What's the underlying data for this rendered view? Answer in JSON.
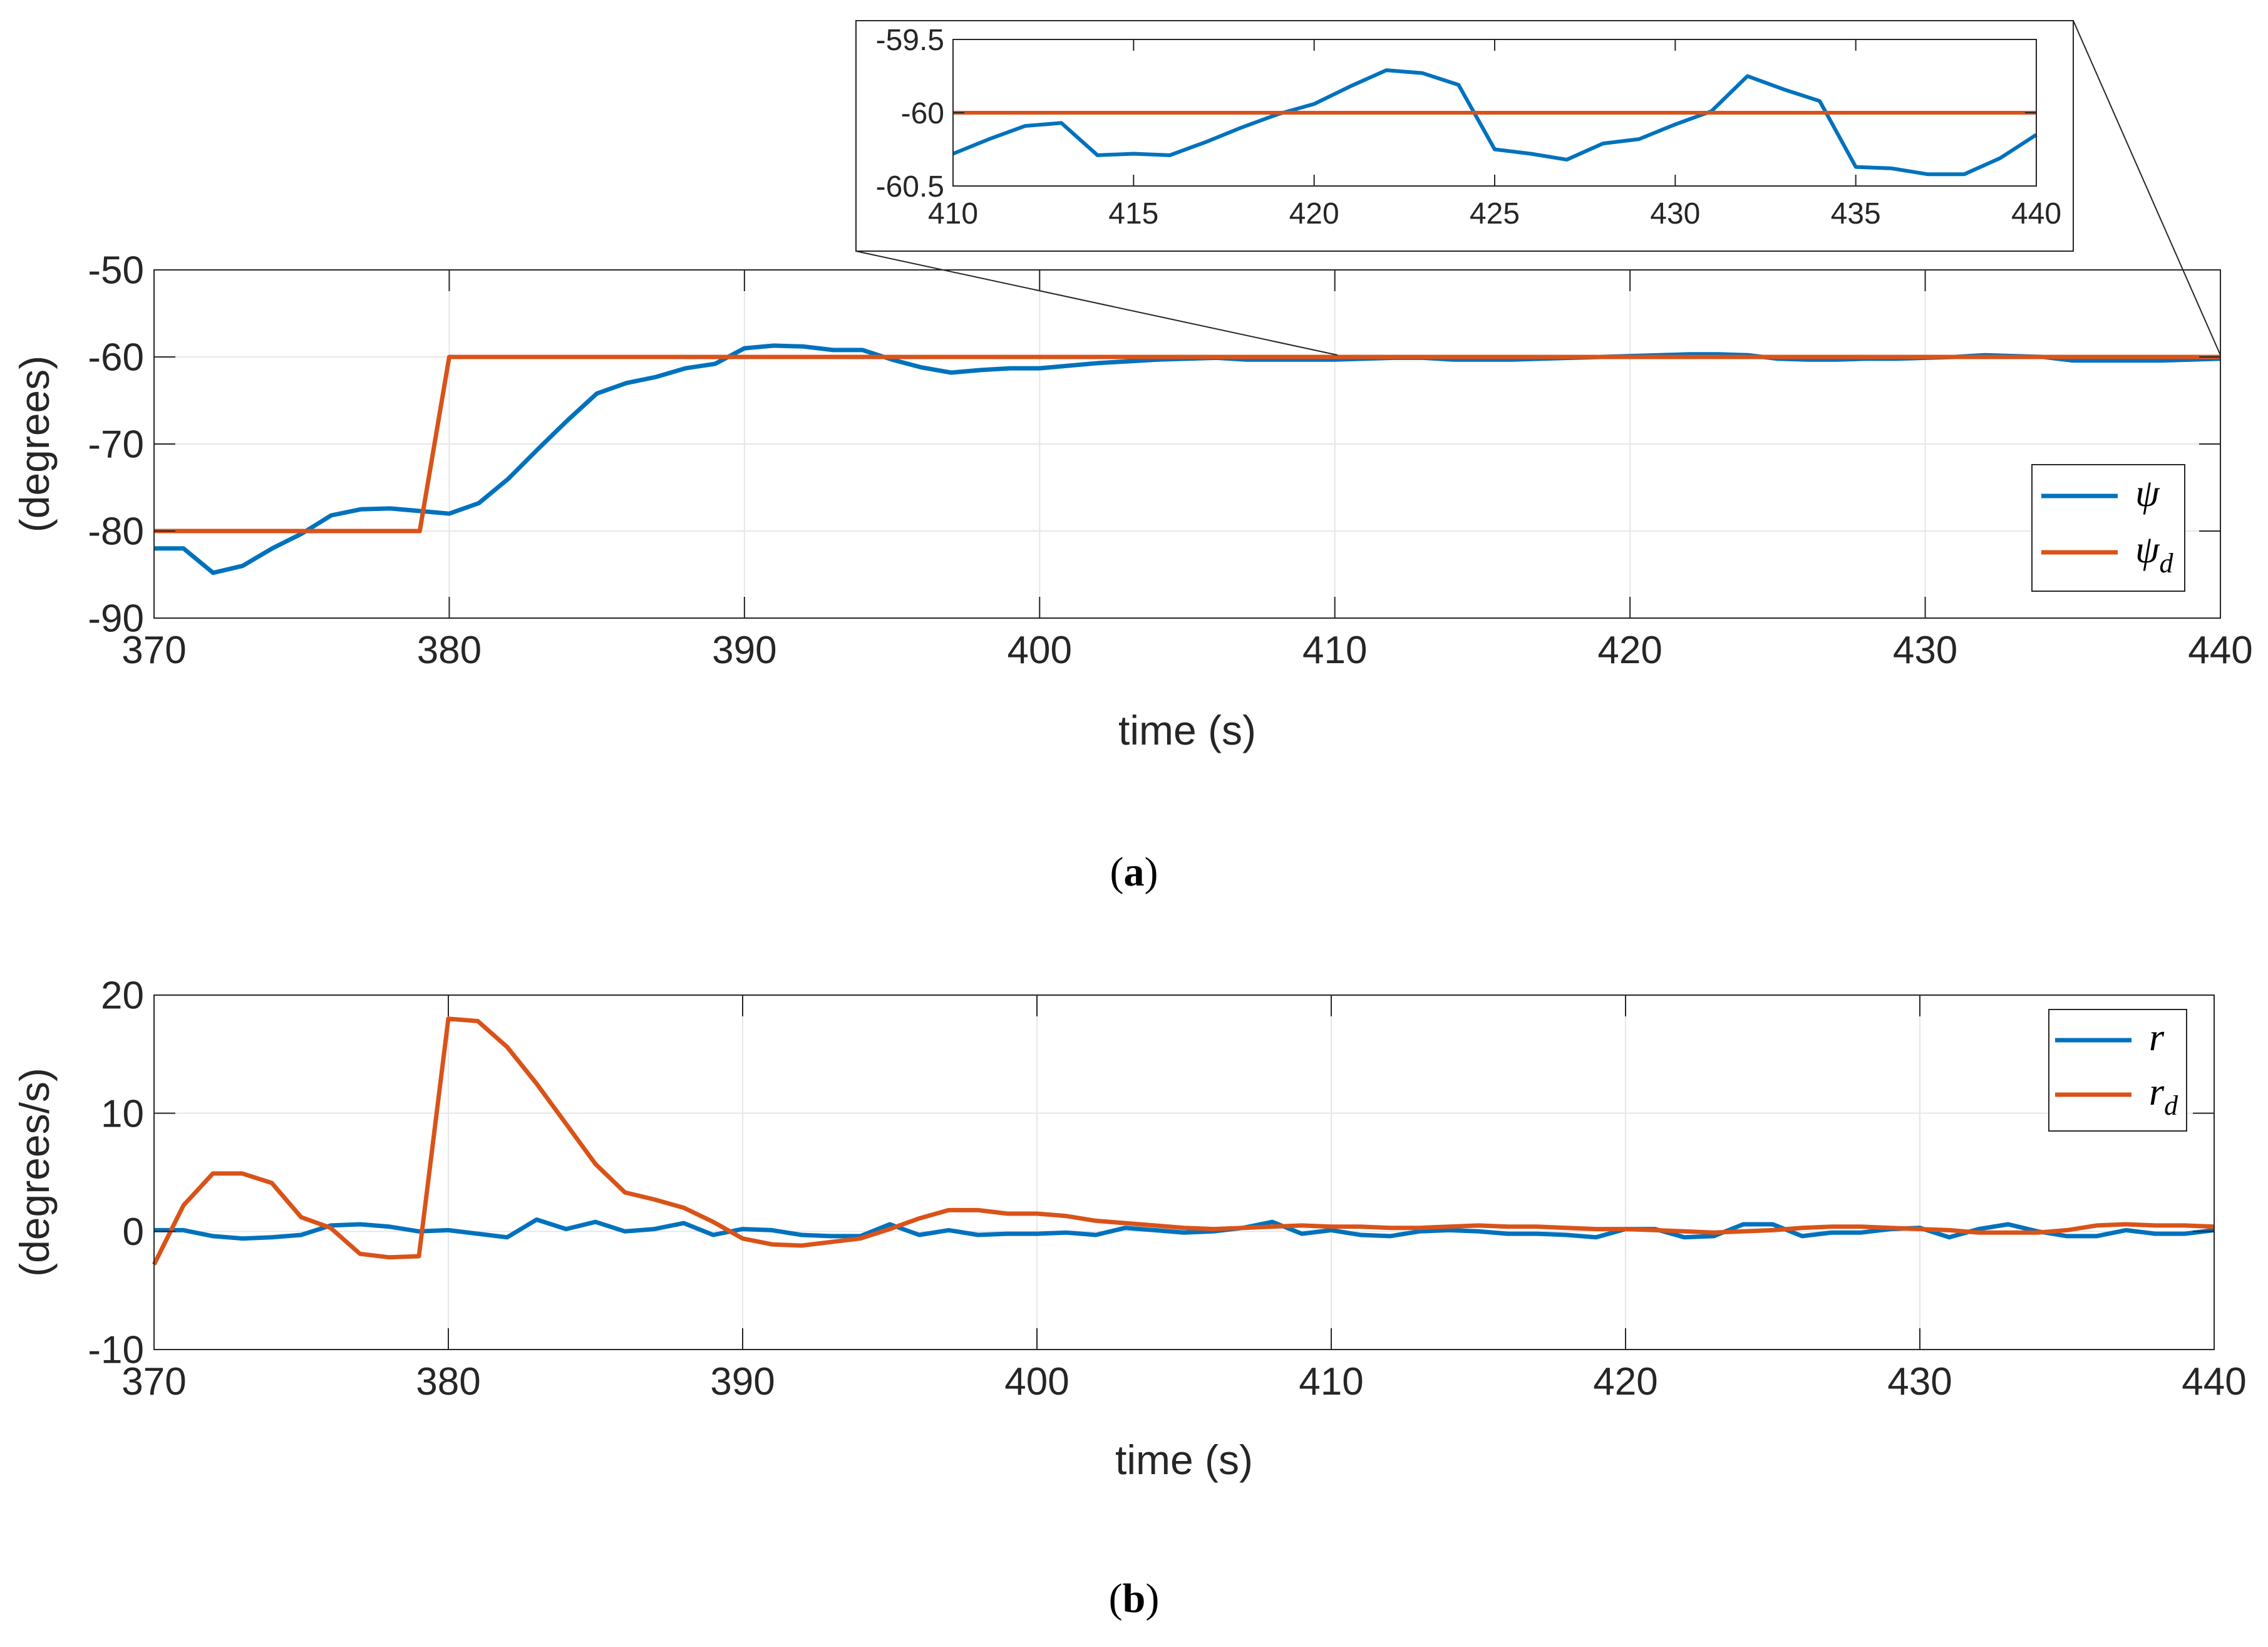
{
  "colors": {
    "psi": "#0072BD",
    "psi_d": "#D95319",
    "grid": "#e6e6e6",
    "axis": "#262626"
  },
  "chart_data": [
    {
      "id": "a",
      "type": "line",
      "caption": "(a)",
      "caption_letter": "a",
      "xlabel": "time (s)",
      "ylabel": "(degrees)",
      "xlim": [
        370,
        440
      ],
      "ylim": [
        -90,
        -50
      ],
      "xticks": [
        370,
        380,
        390,
        400,
        410,
        420,
        430,
        440
      ],
      "yticks": [
        -90,
        -80,
        -70,
        -60,
        -50
      ],
      "ytick_labels": [
        "-90",
        "-80",
        "-70",
        "-60",
        "-50"
      ],
      "legend_position": "right",
      "series": [
        {
          "name": "ψ",
          "base": "ψ",
          "sub": "",
          "color": "#0072BD",
          "x": [
            370,
            371,
            372,
            373,
            374,
            375,
            376,
            377,
            378,
            379,
            380,
            381,
            382,
            383,
            384,
            385,
            386,
            387,
            388,
            389,
            390,
            391,
            392,
            393,
            394,
            395,
            396,
            397,
            398,
            399,
            400,
            401,
            402,
            403,
            404,
            405,
            406,
            407,
            408,
            409,
            410,
            411,
            412,
            413,
            414,
            415,
            416,
            417,
            418,
            419,
            420,
            421,
            422,
            423,
            424,
            425,
            426,
            427,
            428,
            429,
            430,
            431,
            432,
            433,
            434,
            435,
            436,
            437,
            438,
            439,
            440
          ],
          "y": [
            -82,
            -82,
            -84.8,
            -84,
            -82,
            -80.3,
            -78.2,
            -77.5,
            -77.4,
            -77.7,
            -78,
            -76.8,
            -74,
            -70.6,
            -67.3,
            -64.2,
            -63,
            -62.3,
            -61.3,
            -60.8,
            -59,
            -58.7,
            -58.8,
            -59.2,
            -59.2,
            -60.3,
            -61.2,
            -61.8,
            -61.5,
            -61.3,
            -61.3,
            -61,
            -60.7,
            -60.5,
            -60.3,
            -60.2,
            -60.1,
            -60.3,
            -60.3,
            -60.3,
            -60.3,
            -60.2,
            -60.1,
            -60.1,
            -60.3,
            -60.3,
            -60.3,
            -60.2,
            -60.1,
            -60,
            -59.9,
            -59.8,
            -59.7,
            -59.7,
            -59.8,
            -60.2,
            -60.3,
            -60.3,
            -60.2,
            -60.2,
            -60.1,
            -60,
            -59.8,
            -59.9,
            -60,
            -60.4,
            -60.4,
            -60.4,
            -60.4,
            -60.3,
            -60.2
          ]
        },
        {
          "name": "ψd",
          "base": "ψ",
          "sub": "d",
          "color": "#D95319",
          "x": [
            370,
            379,
            380,
            440
          ],
          "y": [
            -80,
            -80,
            -60,
            -60
          ]
        }
      ]
    },
    {
      "id": "a-inset",
      "type": "line",
      "xlim": [
        410,
        440
      ],
      "ylim": [
        -60.5,
        -59.5
      ],
      "xticks": [
        410,
        415,
        420,
        425,
        430,
        435,
        440
      ],
      "yticks": [
        -60.5,
        -60,
        -59.5
      ],
      "ytick_labels": [
        "-60.5",
        "-60",
        "-59.5"
      ],
      "series": [
        {
          "name": "ψ",
          "color": "#0072BD",
          "x": [
            410,
            411,
            412,
            413,
            414,
            415,
            416,
            417,
            418,
            419,
            420,
            421,
            422,
            423,
            424,
            425,
            426,
            427,
            428,
            429,
            430,
            431,
            432,
            433,
            434,
            435,
            436,
            437,
            438,
            439,
            440
          ],
          "y": [
            -60.28,
            -60.18,
            -60.09,
            -60.07,
            -60.29,
            -60.28,
            -60.29,
            -60.2,
            -60.1,
            -60.01,
            -59.94,
            -59.82,
            -59.71,
            -59.73,
            -59.81,
            -60.25,
            -60.28,
            -60.32,
            -60.21,
            -60.18,
            -60.08,
            -59.99,
            -59.75,
            -59.84,
            -59.92,
            -60.37,
            -60.38,
            -60.42,
            -60.42,
            -60.31,
            -60.15
          ]
        },
        {
          "name": "ψd",
          "color": "#D95319",
          "x": [
            410,
            440
          ],
          "y": [
            -60,
            -60
          ]
        }
      ]
    },
    {
      "id": "b",
      "type": "line",
      "caption": "(b)",
      "caption_letter": "b",
      "xlabel": "time (s)",
      "ylabel": "(degrees/s)",
      "xlim": [
        370,
        440
      ],
      "ylim": [
        -10,
        20
      ],
      "xticks": [
        370,
        380,
        390,
        400,
        410,
        420,
        430,
        440
      ],
      "yticks": [
        -10,
        0,
        10,
        20
      ],
      "ytick_labels": [
        "-10",
        "0",
        "10",
        "20"
      ],
      "legend_position": "top-right",
      "series": [
        {
          "name": "r",
          "base": "r",
          "sub": "",
          "color": "#0072BD",
          "x": [
            370,
            371,
            372,
            373,
            374,
            375,
            376,
            377,
            378,
            379,
            380,
            381,
            382,
            383,
            384,
            385,
            386,
            387,
            388,
            389,
            390,
            391,
            392,
            393,
            394,
            395,
            396,
            397,
            398,
            399,
            400,
            401,
            402,
            403,
            404,
            405,
            406,
            407,
            408,
            409,
            410,
            411,
            412,
            413,
            414,
            415,
            416,
            417,
            418,
            419,
            420,
            421,
            422,
            423,
            424,
            425,
            426,
            427,
            428,
            429,
            430,
            431,
            432,
            433,
            434,
            435,
            436,
            437,
            438,
            439,
            440
          ],
          "y": [
            0.1,
            0.1,
            -0.4,
            -0.6,
            -0.5,
            -0.3,
            0.5,
            0.6,
            0.4,
            0,
            0.1,
            -0.2,
            -0.5,
            1,
            0.2,
            0.8,
            0,
            0.2,
            0.7,
            -0.3,
            0.2,
            0.1,
            -0.3,
            -0.4,
            -0.4,
            0.6,
            -0.3,
            0.1,
            -0.3,
            -0.2,
            -0.2,
            -0.1,
            -0.3,
            0.3,
            0.1,
            -0.1,
            0,
            0.3,
            0.8,
            -0.2,
            0.1,
            -0.3,
            -0.4,
            0,
            0.1,
            0,
            -0.2,
            -0.2,
            -0.3,
            -0.5,
            0.2,
            0.2,
            -0.5,
            -0.4,
            0.6,
            0.6,
            -0.4,
            -0.1,
            -0.1,
            0.2,
            0.3,
            -0.5,
            0.2,
            0.6,
            0,
            -0.4,
            -0.4,
            0.1,
            -0.2,
            -0.2,
            0.1
          ]
        },
        {
          "name": "rd",
          "base": "r",
          "sub": "d",
          "color": "#D95319",
          "x": [
            370,
            371,
            372,
            373,
            374,
            375,
            376,
            377,
            378,
            379,
            380,
            381,
            382,
            383,
            384,
            385,
            386,
            387,
            388,
            389,
            390,
            391,
            392,
            393,
            394,
            395,
            396,
            397,
            398,
            399,
            400,
            401,
            402,
            403,
            404,
            405,
            406,
            407,
            408,
            409,
            410,
            411,
            412,
            413,
            414,
            415,
            416,
            417,
            418,
            419,
            420,
            421,
            422,
            423,
            424,
            425,
            426,
            427,
            428,
            429,
            430,
            431,
            432,
            433,
            434,
            435,
            436,
            437,
            438,
            439,
            440
          ],
          "y": [
            -2.8,
            2.2,
            4.9,
            4.9,
            4.1,
            1.2,
            0.3,
            -1.9,
            -2.2,
            -2.1,
            18,
            17.8,
            15.6,
            12.5,
            9.1,
            5.7,
            3.3,
            2.7,
            2,
            0.8,
            -0.6,
            -1.1,
            -1.2,
            -0.9,
            -0.6,
            0.2,
            1.1,
            1.8,
            1.8,
            1.5,
            1.5,
            1.3,
            0.9,
            0.7,
            0.5,
            0.3,
            0.2,
            0.3,
            0.4,
            0.5,
            0.4,
            0.4,
            0.3,
            0.3,
            0.4,
            0.5,
            0.4,
            0.4,
            0.3,
            0.2,
            0.2,
            0.1,
            0,
            -0.1,
            0,
            0.1,
            0.3,
            0.4,
            0.4,
            0.3,
            0.2,
            0.1,
            -0.1,
            -0.1,
            -0.1,
            0.1,
            0.5,
            0.6,
            0.5,
            0.5,
            0.4
          ]
        }
      ]
    }
  ]
}
